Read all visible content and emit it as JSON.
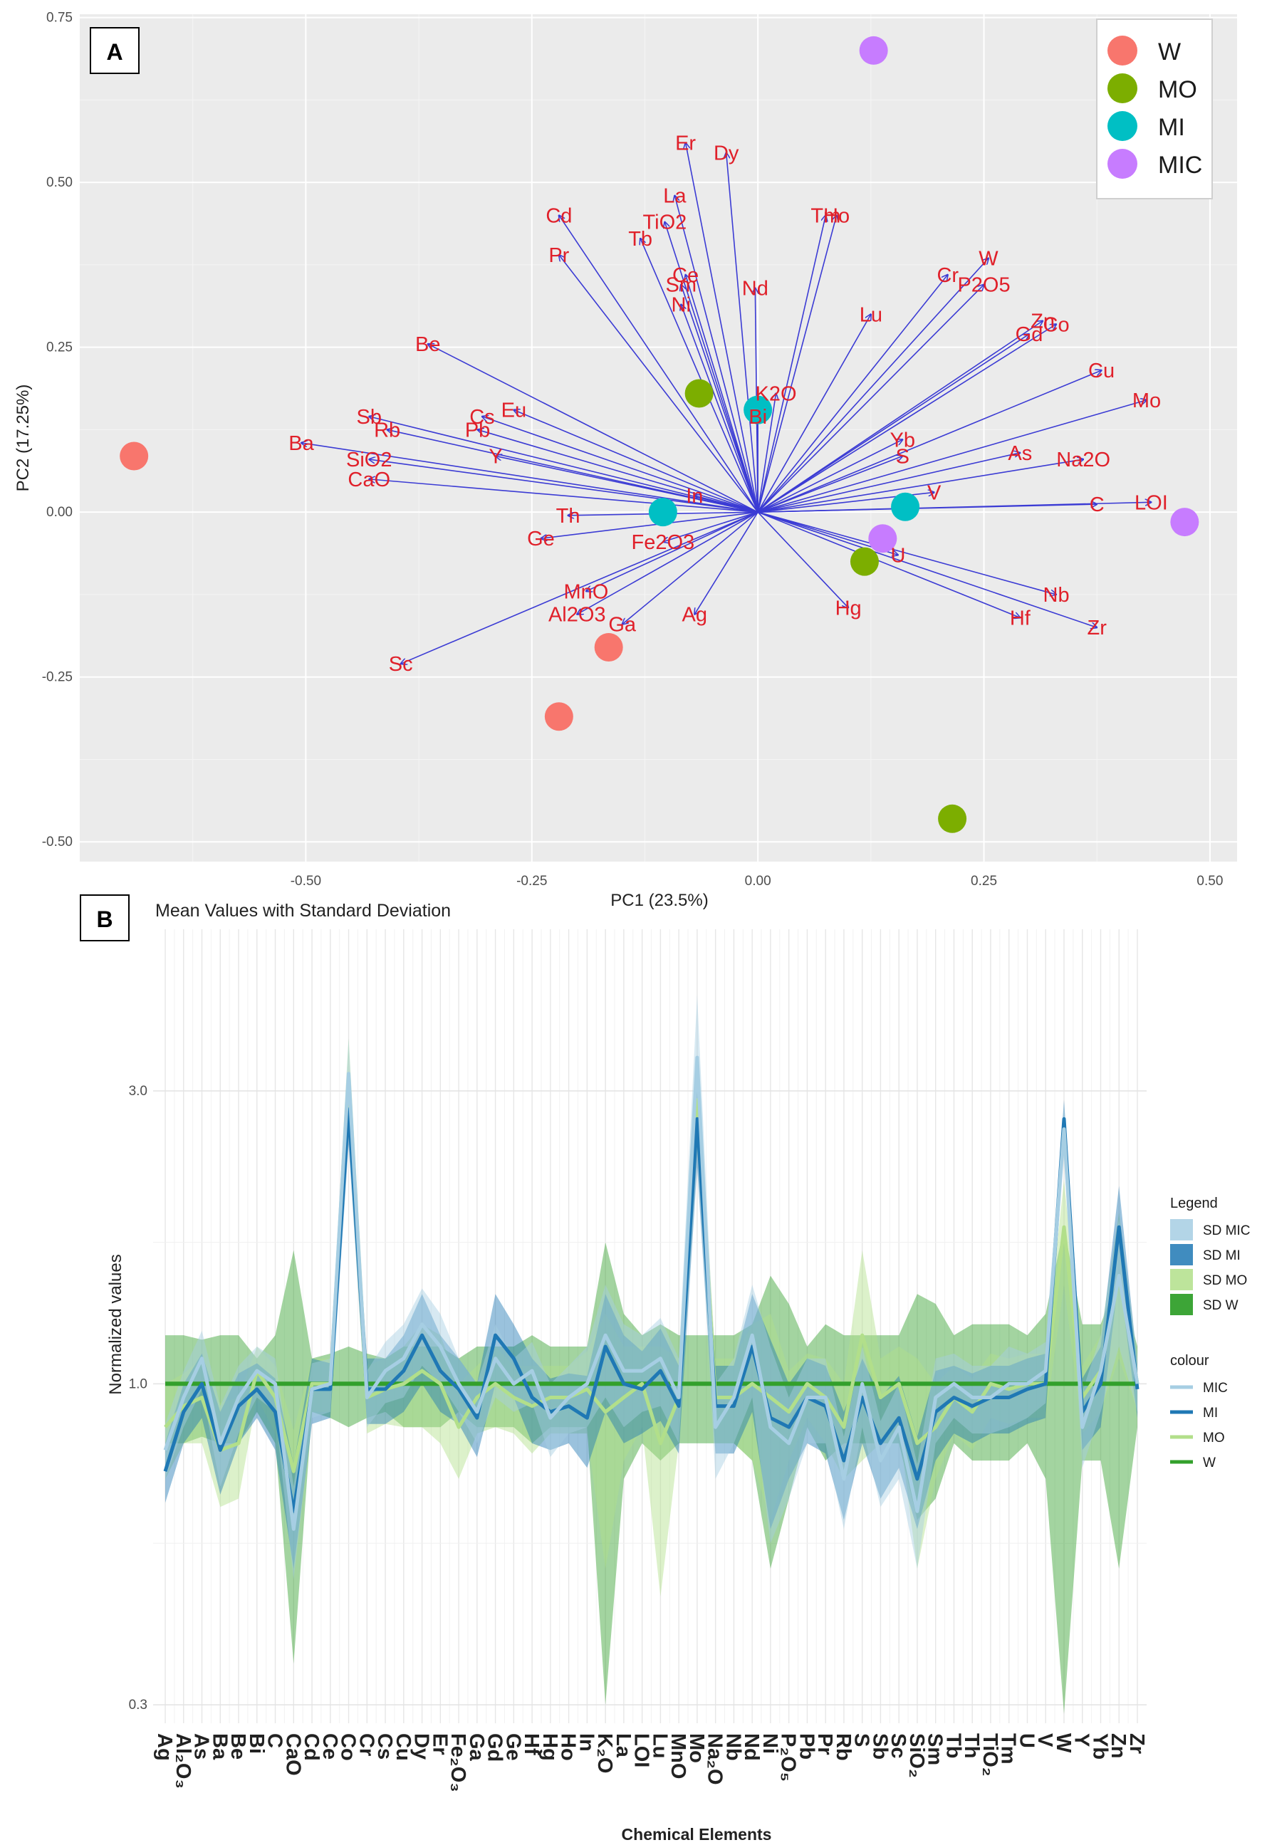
{
  "chart_data": [
    {
      "panel": "A",
      "type": "scatter",
      "title": "",
      "xlabel": "PC1 (23.5%)",
      "ylabel": "PC2 (17.25%)",
      "xlim": [
        -0.75,
        0.53
      ],
      "ylim": [
        -0.53,
        0.755
      ],
      "xticks": [
        -0.5,
        -0.25,
        0.0,
        0.25,
        0.5
      ],
      "xtick_labels": [
        "-0.50",
        "-0.25",
        "0.00",
        "0.25",
        "0.50"
      ],
      "yticks": [
        -0.5,
        -0.25,
        0.0,
        0.25,
        0.5,
        0.75
      ],
      "ytick_labels": [
        "-0.50",
        "-0.25",
        "0.00",
        "0.25",
        "0.50",
        "0.75"
      ],
      "legend_position": "top-right",
      "groups": [
        {
          "name": "W",
          "color": "#f8766d",
          "points": [
            [
              -0.69,
              0.085
            ],
            [
              -0.165,
              -0.205
            ],
            [
              -0.22,
              -0.31
            ]
          ]
        },
        {
          "name": "MO",
          "color": "#7cae00",
          "points": [
            [
              -0.065,
              0.18
            ],
            [
              0.118,
              -0.075
            ],
            [
              0.215,
              -0.465
            ]
          ]
        },
        {
          "name": "MI",
          "color": "#00bfc4",
          "points": [
            [
              0.0,
              0.155
            ],
            [
              -0.105,
              0.0
            ],
            [
              0.163,
              0.008
            ]
          ]
        },
        {
          "name": "MIC",
          "color": "#c77cff",
          "points": [
            [
              0.128,
              0.7
            ],
            [
              0.138,
              -0.04
            ],
            [
              0.472,
              -0.015
            ]
          ]
        }
      ],
      "loadings": [
        {
          "name": "Er",
          "x": -0.08,
          "y": 0.56
        },
        {
          "name": "Dy",
          "x": -0.035,
          "y": 0.545
        },
        {
          "name": "La",
          "x": -0.092,
          "y": 0.48
        },
        {
          "name": "TiO2",
          "x": -0.103,
          "y": 0.44
        },
        {
          "name": "Tb",
          "x": -0.13,
          "y": 0.415
        },
        {
          "name": "Cd",
          "x": -0.22,
          "y": 0.45
        },
        {
          "name": "Pr",
          "x": -0.22,
          "y": 0.39
        },
        {
          "name": "Ce",
          "x": -0.08,
          "y": 0.36
        },
        {
          "name": "Sm",
          "x": -0.085,
          "y": 0.345
        },
        {
          "name": "Ni",
          "x": -0.085,
          "y": 0.315
        },
        {
          "name": "Nd",
          "x": -0.003,
          "y": 0.34
        },
        {
          "name": "Tm",
          "x": 0.075,
          "y": 0.45
        },
        {
          "name": "Ho",
          "x": 0.087,
          "y": 0.45
        },
        {
          "name": "Lu",
          "x": 0.125,
          "y": 0.3
        },
        {
          "name": "Cr",
          "x": 0.21,
          "y": 0.36
        },
        {
          "name": "W",
          "x": 0.255,
          "y": 0.385
        },
        {
          "name": "P2O5",
          "x": 0.25,
          "y": 0.345
        },
        {
          "name": "Zn",
          "x": 0.315,
          "y": 0.29
        },
        {
          "name": "Co",
          "x": 0.33,
          "y": 0.285
        },
        {
          "name": "Gd",
          "x": 0.3,
          "y": 0.27
        },
        {
          "name": "Cu",
          "x": 0.38,
          "y": 0.215
        },
        {
          "name": "Mo",
          "x": 0.43,
          "y": 0.17
        },
        {
          "name": "Be",
          "x": -0.365,
          "y": 0.255
        },
        {
          "name": "K2O",
          "x": 0.02,
          "y": 0.18
        },
        {
          "name": "Bi",
          "x": 0.0,
          "y": 0.145
        },
        {
          "name": "Eu",
          "x": -0.27,
          "y": 0.155
        },
        {
          "name": "Cs",
          "x": -0.305,
          "y": 0.145
        },
        {
          "name": "Pb",
          "x": -0.31,
          "y": 0.125
        },
        {
          "name": "Sb",
          "x": -0.43,
          "y": 0.145
        },
        {
          "name": "Rb",
          "x": -0.41,
          "y": 0.125
        },
        {
          "name": "Ba",
          "x": -0.505,
          "y": 0.105
        },
        {
          "name": "SiO2",
          "x": -0.43,
          "y": 0.08
        },
        {
          "name": "CaO",
          "x": -0.43,
          "y": 0.05
        },
        {
          "name": "Y",
          "x": -0.29,
          "y": 0.085
        },
        {
          "name": "Yb",
          "x": 0.16,
          "y": 0.11
        },
        {
          "name": "S",
          "x": 0.16,
          "y": 0.085
        },
        {
          "name": "As",
          "x": 0.29,
          "y": 0.09
        },
        {
          "name": "Na2O",
          "x": 0.36,
          "y": 0.08
        },
        {
          "name": "In",
          "x": -0.07,
          "y": 0.025
        },
        {
          "name": "Th",
          "x": -0.21,
          "y": -0.005
        },
        {
          "name": "V",
          "x": 0.195,
          "y": 0.03
        },
        {
          "name": "C",
          "x": 0.375,
          "y": 0.012
        },
        {
          "name": "LOI",
          "x": 0.435,
          "y": 0.015
        },
        {
          "name": "Ge",
          "x": -0.24,
          "y": -0.04
        },
        {
          "name": "Fe2O3",
          "x": -0.105,
          "y": -0.045
        },
        {
          "name": "U",
          "x": 0.155,
          "y": -0.065
        },
        {
          "name": "MnO",
          "x": -0.19,
          "y": -0.12
        },
        {
          "name": "Al2O3",
          "x": -0.2,
          "y": -0.155
        },
        {
          "name": "Ga",
          "x": -0.15,
          "y": -0.17
        },
        {
          "name": "Ag",
          "x": -0.07,
          "y": -0.155
        },
        {
          "name": "Hg",
          "x": 0.1,
          "y": -0.145
        },
        {
          "name": "Nb",
          "x": 0.33,
          "y": -0.125
        },
        {
          "name": "Hf",
          "x": 0.29,
          "y": -0.16
        },
        {
          "name": "Zr",
          "x": 0.375,
          "y": -0.175
        },
        {
          "name": "Sc",
          "x": -0.395,
          "y": -0.23
        }
      ]
    },
    {
      "panel": "B",
      "type": "line",
      "title": "Mean Values with Standard Deviation",
      "xlabel": "Chemical Elements",
      "ylabel": "Normalized values",
      "yscale": "log",
      "ylim": [
        0.28,
        5.5
      ],
      "yticks": [
        0.3,
        1.0,
        3.0
      ],
      "ytick_labels": [
        "0.3",
        "1.0",
        "3.0"
      ],
      "legend_position": "right",
      "legend_sd_title": "Legend",
      "legend_line_title": "colour",
      "categories": [
        "Ag",
        "Al₂O₃",
        "As",
        "Ba",
        "Be",
        "Bi",
        "C",
        "CaO",
        "Cd",
        "Ce",
        "Co",
        "Cr",
        "Cs",
        "Cu",
        "Dy",
        "Er",
        "Fe₂O₃",
        "Ga",
        "Gd",
        "Ge",
        "Hf",
        "Hg",
        "Ho",
        "In",
        "K₂O",
        "La",
        "LOI",
        "Lu",
        "MnO",
        "Mo",
        "Na₂O",
        "Nb",
        "Nd",
        "Ni",
        "P₂O₅",
        "Pb",
        "Pr",
        "Rb",
        "S",
        "Sb",
        "Sc",
        "SiO₂",
        "Sm",
        "Tb",
        "Th",
        "TiO₂",
        "Tm",
        "U",
        "V",
        "W",
        "Y",
        "Yb",
        "Zn",
        "Zr"
      ],
      "series": [
        {
          "name": "MIC",
          "sd_label": "SD MIC",
          "line_color": "#a6cee3",
          "band_color": "#a6cee3",
          "values": [
            0.78,
            0.95,
            1.1,
            0.8,
            0.95,
            1.05,
            1.0,
            0.58,
            0.98,
            1.0,
            3.2,
            0.95,
            1.05,
            1.1,
            1.25,
            1.15,
            1.0,
            0.9,
            1.1,
            1.0,
            1.05,
            0.88,
            0.95,
            1.0,
            1.2,
            1.05,
            1.05,
            1.1,
            0.95,
            3.4,
            0.85,
            0.95,
            1.2,
            0.85,
            0.8,
            0.95,
            0.95,
            0.7,
            1.0,
            0.75,
            0.85,
            0.62,
            0.95,
            1.0,
            0.95,
            0.95,
            1.0,
            1.0,
            1.05,
            2.6,
            0.85,
            1.05,
            1.5,
            1.0
          ],
          "sd": [
            0.08,
            0.1,
            0.12,
            0.12,
            0.12,
            0.1,
            0.1,
            0.1,
            0.1,
            0.1,
            0.45,
            0.1,
            0.12,
            0.15,
            0.18,
            0.15,
            0.1,
            0.1,
            0.15,
            0.1,
            0.12,
            0.12,
            0.12,
            0.15,
            0.25,
            0.2,
            0.15,
            0.18,
            0.15,
            0.9,
            0.15,
            0.15,
            0.25,
            0.3,
            0.15,
            0.15,
            0.15,
            0.12,
            0.15,
            0.12,
            0.15,
            0.12,
            0.15,
            0.12,
            0.12,
            0.12,
            0.15,
            0.12,
            0.12,
            0.25,
            0.12,
            0.15,
            0.35,
            0.1
          ]
        },
        {
          "name": "MI",
          "sd_label": "SD MI",
          "line_color": "#1f78b4",
          "band_color": "#1f78b4",
          "values": [
            0.72,
            0.9,
            1.0,
            0.78,
            0.92,
            0.98,
            0.9,
            0.62,
            0.98,
            0.98,
            2.8,
            0.98,
            0.98,
            1.05,
            1.2,
            1.05,
            0.98,
            0.88,
            1.2,
            1.1,
            0.95,
            0.9,
            0.92,
            0.88,
            1.15,
            1.0,
            0.98,
            1.05,
            0.92,
            2.7,
            0.92,
            0.92,
            1.15,
            0.88,
            0.85,
            0.95,
            0.92,
            0.75,
            0.95,
            0.8,
            0.88,
            0.7,
            0.9,
            0.95,
            0.92,
            0.95,
            0.95,
            0.98,
            1.0,
            2.7,
            0.9,
            1.0,
            1.8,
            0.98
          ],
          "sd": [
            0.08,
            0.1,
            0.12,
            0.12,
            0.12,
            0.1,
            0.12,
            0.12,
            0.12,
            0.1,
            0.35,
            0.12,
            0.12,
            0.15,
            0.2,
            0.15,
            0.12,
            0.12,
            0.2,
            0.15,
            0.15,
            0.12,
            0.12,
            0.15,
            0.25,
            0.2,
            0.15,
            0.18,
            0.15,
            0.45,
            0.15,
            0.15,
            0.25,
            0.3,
            0.15,
            0.15,
            0.15,
            0.15,
            0.15,
            0.15,
            0.15,
            0.12,
            0.15,
            0.12,
            0.12,
            0.12,
            0.12,
            0.12,
            0.12,
            0.2,
            0.12,
            0.15,
            0.3,
            0.1
          ]
        },
        {
          "name": "MO",
          "sd_label": "SD MO",
          "line_color": "#b2df8a",
          "band_color": "#b2df8a",
          "values": [
            0.85,
            0.92,
            0.95,
            0.78,
            0.8,
            1.05,
            0.95,
            0.72,
            1.0,
            1.0,
            3.1,
            0.95,
            0.98,
            1.0,
            1.05,
            1.0,
            0.85,
            0.95,
            1.0,
            0.95,
            0.92,
            0.95,
            0.95,
            0.98,
            0.9,
            0.95,
            1.0,
            0.8,
            0.95,
            2.9,
            0.95,
            0.95,
            1.0,
            0.95,
            0.9,
            1.0,
            0.95,
            0.85,
            1.2,
            0.95,
            1.0,
            0.8,
            0.85,
            0.95,
            0.9,
            1.0,
            0.98,
            1.0,
            1.0,
            1.8,
            0.95,
            1.05,
            1.5,
            1.0
          ],
          "sd": [
            0.15,
            0.12,
            0.15,
            0.15,
            0.15,
            0.1,
            0.12,
            0.12,
            0.1,
            0.1,
            0.55,
            0.12,
            0.12,
            0.15,
            0.2,
            0.2,
            0.15,
            0.12,
            0.15,
            0.12,
            0.15,
            0.12,
            0.12,
            0.15,
            0.4,
            0.2,
            0.15,
            0.35,
            0.15,
            0.5,
            0.15,
            0.15,
            0.25,
            0.35,
            0.15,
            0.12,
            0.15,
            0.15,
            0.45,
            0.15,
            0.15,
            0.3,
            0.15,
            0.12,
            0.12,
            0.12,
            0.12,
            0.12,
            0.12,
            0.35,
            0.12,
            0.15,
            0.4,
            0.1
          ]
        },
        {
          "name": "W",
          "sd_label": "SD W",
          "line_color": "#33a02c",
          "band_color": "#33a02c",
          "values": [
            1.0,
            1.0,
            1.0,
            1.0,
            1.0,
            1.0,
            1.0,
            1.0,
            1.0,
            1.0,
            1.0,
            1.0,
            1.0,
            1.0,
            1.0,
            1.0,
            1.0,
            1.0,
            1.0,
            1.0,
            1.0,
            1.0,
            1.0,
            1.0,
            1.0,
            1.0,
            1.0,
            1.0,
            1.0,
            1.0,
            1.0,
            1.0,
            1.0,
            1.0,
            1.0,
            1.0,
            1.0,
            1.0,
            1.0,
            1.0,
            1.0,
            1.0,
            1.0,
            1.0,
            1.0,
            1.0,
            1.0,
            1.0,
            1.0,
            1.0,
            1.0,
            1.0,
            1.0,
            1.0
          ],
          "sd": [
            0.2,
            0.2,
            0.18,
            0.2,
            0.2,
            0.1,
            0.2,
            0.65,
            0.1,
            0.12,
            0.15,
            0.12,
            0.1,
            0.15,
            0.15,
            0.15,
            0.1,
            0.15,
            0.15,
            0.15,
            0.2,
            0.15,
            0.15,
            0.15,
            0.7,
            0.3,
            0.2,
            0.25,
            0.2,
            0.2,
            0.2,
            0.2,
            0.25,
            0.5,
            0.35,
            0.15,
            0.25,
            0.2,
            0.2,
            0.2,
            0.2,
            0.4,
            0.35,
            0.2,
            0.25,
            0.25,
            0.25,
            0.2,
            0.3,
            0.8,
            0.25,
            0.25,
            0.5,
            0.15
          ]
        }
      ]
    }
  ]
}
